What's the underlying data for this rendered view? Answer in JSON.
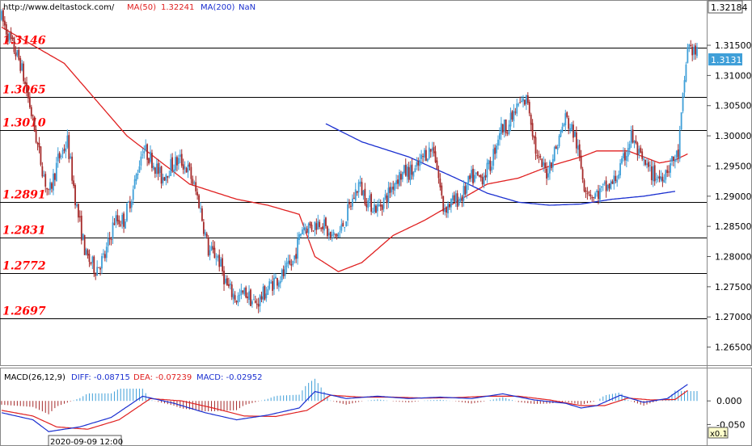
{
  "header": {
    "url": "http://www.deltastock.com/",
    "ma50_label": "MA(50)",
    "ma50_value": "1.32241",
    "ma200_label": "MA(200)",
    "ma200_value": "NaN"
  },
  "macd_header": {
    "title": "MACD(26,12,9)",
    "diff": "DIFF: -0.08715",
    "dea": "DEA: -0.07239",
    "macd": "MACD: -0.02952"
  },
  "footer": {
    "date_label": "2020-09-09 12:00",
    "zoom_label": "x0.1"
  },
  "colors": {
    "up": "#3f9fd8",
    "down": "#a52a2a",
    "ma50": "#e02020",
    "ma200": "#1a2fd0",
    "level_text": "#ff0000",
    "diff": "#1a2fd0",
    "dea": "#e02020",
    "hist_up": "#3f9fd8",
    "hist_down": "#a52a2a"
  },
  "chart_data": {
    "type": "candlestick",
    "ylim": [
      1.262,
      1.3225
    ],
    "y_ticks": [
      "1.26500",
      "1.27000",
      "1.27500",
      "1.28000",
      "1.28500",
      "1.29000",
      "1.29500",
      "1.30000",
      "1.30500",
      "1.31000",
      "1.31500"
    ],
    "current_high_label": "1.32184",
    "current_price_label": "1.31311",
    "levels": [
      {
        "value": 1.3146,
        "label": "1.3146"
      },
      {
        "value": 1.3065,
        "label": "1.3065"
      },
      {
        "value": 1.301,
        "label": "1.3010"
      },
      {
        "value": 1.2891,
        "label": "1.2891"
      },
      {
        "value": 1.2831,
        "label": "1.2831"
      },
      {
        "value": 1.2772,
        "label": "1.2772"
      },
      {
        "value": 1.2697,
        "label": "1.2697"
      }
    ],
    "price_anchors": [
      [
        0,
        1.3195
      ],
      [
        6,
        1.3155
      ],
      [
        12,
        1.312
      ],
      [
        18,
        1.305
      ],
      [
        24,
        1.297
      ],
      [
        30,
        1.29
      ],
      [
        36,
        1.296
      ],
      [
        42,
        1.299
      ],
      [
        48,
        1.288
      ],
      [
        54,
        1.28
      ],
      [
        60,
        1.278
      ],
      [
        66,
        1.28
      ],
      [
        72,
        1.286
      ],
      [
        78,
        1.286
      ],
      [
        84,
        1.291
      ],
      [
        90,
        1.298
      ],
      [
        96,
        1.296
      ],
      [
        102,
        1.293
      ],
      [
        108,
        1.295
      ],
      [
        114,
        1.296
      ],
      [
        120,
        1.294
      ],
      [
        126,
        1.289
      ],
      [
        132,
        1.281
      ],
      [
        138,
        1.28
      ],
      [
        144,
        1.275
      ],
      [
        150,
        1.273
      ],
      [
        156,
        1.274
      ],
      [
        162,
        1.272
      ],
      [
        168,
        1.274
      ],
      [
        174,
        1.276
      ],
      [
        180,
        1.277
      ],
      [
        186,
        1.279
      ],
      [
        192,
        1.285
      ],
      [
        198,
        1.285
      ],
      [
        204,
        1.286
      ],
      [
        210,
        1.283
      ],
      [
        216,
        1.284
      ],
      [
        222,
        1.288
      ],
      [
        228,
        1.292
      ],
      [
        234,
        1.289
      ],
      [
        240,
        1.288
      ],
      [
        246,
        1.29
      ],
      [
        252,
        1.293
      ],
      [
        258,
        1.294
      ],
      [
        264,
        1.294
      ],
      [
        270,
        1.297
      ],
      [
        276,
        1.298
      ],
      [
        282,
        1.288
      ],
      [
        288,
        1.289
      ],
      [
        294,
        1.29
      ],
      [
        300,
        1.293
      ],
      [
        306,
        1.293
      ],
      [
        312,
        1.295
      ],
      [
        318,
        1.301
      ],
      [
        324,
        1.302
      ],
      [
        330,
        1.305
      ],
      [
        336,
        1.306
      ],
      [
        342,
        1.296
      ],
      [
        348,
        1.294
      ],
      [
        354,
        1.298
      ],
      [
        360,
        1.303
      ],
      [
        366,
        1.3
      ],
      [
        372,
        1.292
      ],
      [
        378,
        1.29
      ],
      [
        384,
        1.291
      ],
      [
        390,
        1.292
      ],
      [
        396,
        1.295
      ],
      [
        402,
        1.3
      ],
      [
        408,
        1.296
      ],
      [
        414,
        1.294
      ],
      [
        420,
        1.293
      ],
      [
        426,
        1.295
      ],
      [
        432,
        1.297
      ],
      [
        438,
        1.315
      ],
      [
        444,
        1.3135
      ]
    ],
    "ma50": [
      [
        0,
        1.318
      ],
      [
        40,
        1.312
      ],
      [
        80,
        1.3
      ],
      [
        120,
        1.292
      ],
      [
        150,
        1.2895
      ],
      [
        170,
        1.2885
      ],
      [
        190,
        1.287
      ],
      [
        200,
        1.28
      ],
      [
        215,
        1.2775
      ],
      [
        230,
        1.279
      ],
      [
        250,
        1.2835
      ],
      [
        270,
        1.286
      ],
      [
        290,
        1.289
      ],
      [
        310,
        1.292
      ],
      [
        330,
        1.293
      ],
      [
        350,
        1.295
      ],
      [
        370,
        1.2965
      ],
      [
        380,
        1.2975
      ],
      [
        400,
        1.2975
      ],
      [
        410,
        1.2965
      ],
      [
        420,
        1.2955
      ],
      [
        430,
        1.296
      ],
      [
        438,
        1.297
      ]
    ],
    "ma200": [
      [
        207,
        1.302
      ],
      [
        230,
        1.299
      ],
      [
        260,
        1.2965
      ],
      [
        290,
        1.293
      ],
      [
        310,
        1.2905
      ],
      [
        330,
        1.289
      ],
      [
        350,
        1.2885
      ],
      [
        370,
        1.2887
      ],
      [
        390,
        1.2895
      ],
      [
        410,
        1.29
      ],
      [
        430,
        1.2908
      ]
    ],
    "macd": {
      "ylim": [
        -0.075,
        0.038
      ],
      "ticks": [
        "0.000",
        "-0.050"
      ],
      "diff_anchors": [
        [
          0,
          -0.025
        ],
        [
          20,
          -0.04
        ],
        [
          30,
          -0.065
        ],
        [
          50,
          -0.055
        ],
        [
          70,
          -0.035
        ],
        [
          90,
          0.01
        ],
        [
          110,
          -0.005
        ],
        [
          130,
          -0.025
        ],
        [
          150,
          -0.04
        ],
        [
          170,
          -0.03
        ],
        [
          190,
          -0.015
        ],
        [
          200,
          0.02
        ],
        [
          220,
          0.005
        ],
        [
          240,
          0.01
        ],
        [
          260,
          0.005
        ],
        [
          280,
          0.008
        ],
        [
          300,
          0.005
        ],
        [
          320,
          0.015
        ],
        [
          340,
          0.002
        ],
        [
          360,
          -0.005
        ],
        [
          370,
          -0.015
        ],
        [
          380,
          -0.01
        ],
        [
          395,
          0.012
        ],
        [
          410,
          -0.003
        ],
        [
          425,
          0.005
        ],
        [
          438,
          0.035
        ]
      ],
      "dea_anchors": [
        [
          0,
          -0.02
        ],
        [
          20,
          -0.032
        ],
        [
          35,
          -0.055
        ],
        [
          55,
          -0.06
        ],
        [
          75,
          -0.04
        ],
        [
          95,
          0.005
        ],
        [
          115,
          0.0
        ],
        [
          135,
          -0.015
        ],
        [
          155,
          -0.032
        ],
        [
          175,
          -0.033
        ],
        [
          195,
          -0.02
        ],
        [
          210,
          0.012
        ],
        [
          230,
          0.008
        ],
        [
          250,
          0.008
        ],
        [
          270,
          0.006
        ],
        [
          290,
          0.007
        ],
        [
          310,
          0.01
        ],
        [
          330,
          0.01
        ],
        [
          350,
          0.002
        ],
        [
          370,
          -0.01
        ],
        [
          385,
          -0.01
        ],
        [
          400,
          0.006
        ],
        [
          415,
          0.002
        ],
        [
          430,
          0.003
        ],
        [
          438,
          0.022
        ]
      ]
    }
  }
}
